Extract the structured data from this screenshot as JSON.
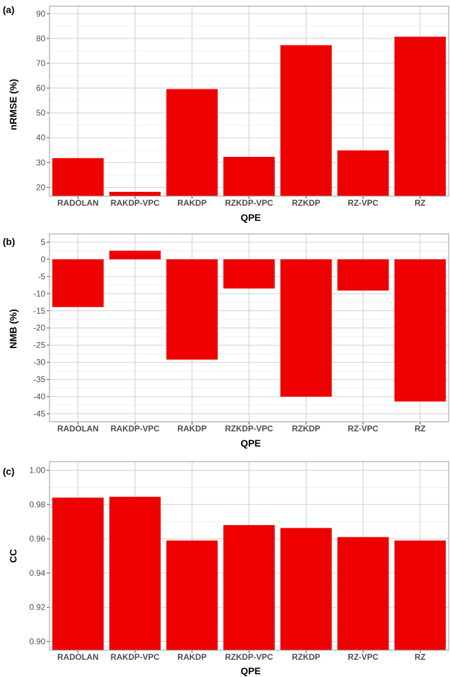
{
  "chart_data": [
    {
      "type": "bar",
      "panel_label": "(a)",
      "xlabel": "QPE",
      "ylabel": "nRMSE (%)",
      "categories": [
        "RADOLAN",
        "RAKDP-VPC",
        "RAKDP",
        "RZKDP-VPC",
        "RZKDP",
        "RZ-VPC",
        "RZ"
      ],
      "values": [
        31.8,
        18.2,
        59.6,
        32.3,
        77.3,
        34.9,
        80.7
      ],
      "ylim": [
        16.5,
        93
      ],
      "yticks": [
        20,
        30,
        40,
        50,
        60,
        70,
        80,
        90
      ],
      "ytick_labels": [
        "20",
        "30",
        "40",
        "50",
        "60",
        "70",
        "80",
        "90"
      ],
      "grid": true,
      "bar_color": "#ee0000"
    },
    {
      "type": "bar",
      "panel_label": "(b)",
      "xlabel": "QPE",
      "ylabel": "NMB (%)",
      "categories": [
        "RADOLAN",
        "RAKDP-VPC",
        "RAKDP",
        "RZKDP-VPC",
        "RZKDP",
        "RZ-VPC",
        "RZ"
      ],
      "values": [
        -13.9,
        2.5,
        -29.2,
        -8.5,
        -40.0,
        -9.1,
        -41.4
      ],
      "ylim": [
        -47.3,
        7.4
      ],
      "yticks": [
        5,
        0,
        -5,
        -10,
        -15,
        -20,
        -25,
        -30,
        -35,
        -40,
        -45
      ],
      "ytick_labels": [
        "5",
        "0",
        "-5",
        "-10",
        "-15",
        "-20",
        "-25",
        "-30",
        "-35",
        "-40",
        "-45"
      ],
      "grid": true,
      "bar_color": "#ee0000"
    },
    {
      "type": "bar",
      "panel_label": "(c)",
      "xlabel": "QPE",
      "ylabel": "CC",
      "categories": [
        "RADOLAN",
        "RAKDP-VPC",
        "RAKDP",
        "RZKDP-VPC",
        "RZKDP",
        "RZ-VPC",
        "RZ"
      ],
      "values": [
        0.984,
        0.9845,
        0.959,
        0.968,
        0.9663,
        0.961,
        0.959
      ],
      "ylim": [
        0.895,
        1.005
      ],
      "yticks": [
        0.9,
        0.92,
        0.94,
        0.96,
        0.98,
        1.0
      ],
      "ytick_labels": [
        "0.90",
        "0.92",
        "0.94",
        "0.96",
        "0.98",
        "1.00"
      ],
      "grid": true,
      "bar_color": "#ee0000"
    }
  ]
}
